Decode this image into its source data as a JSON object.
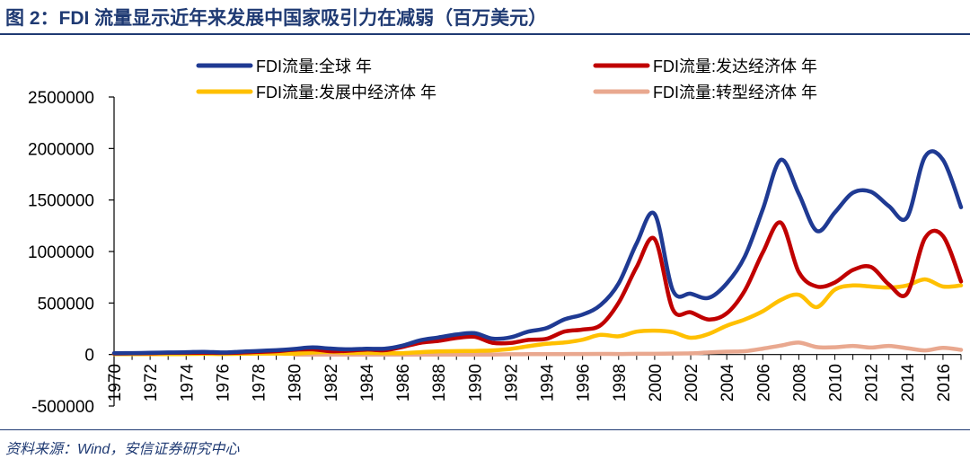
{
  "title": "图 2：FDI 流量显示近年来发展中国家吸引力在减弱（百万美元）",
  "source": "资料来源：Wind，安信证券研究中心",
  "chart_data": {
    "type": "line",
    "title": "图 2：FDI 流量显示近年来发展中国家吸引力在减弱（百万美元）",
    "xlabel": "",
    "ylabel": "",
    "xlim": [
      1970,
      2017
    ],
    "ylim": [
      -500000,
      2500000
    ],
    "yticks": [
      -500000,
      0,
      500000,
      1000000,
      1500000,
      2000000,
      2500000
    ],
    "ytick_labels": [
      "-500000",
      "0",
      "500000",
      "1000000",
      "1500000",
      "2000000",
      "2500000"
    ],
    "xtick_labels": [
      "1970",
      "1972",
      "1974",
      "1976",
      "1978",
      "1980",
      "1982",
      "1984",
      "1986",
      "1988",
      "1990",
      "1992",
      "1994",
      "1996",
      "1998",
      "2000",
      "2002",
      "2004",
      "2006",
      "2008",
      "2010",
      "2012",
      "2014",
      "2016"
    ],
    "grid": false,
    "legend_placement": "top",
    "x": [
      1970,
      1971,
      1972,
      1973,
      1974,
      1975,
      1976,
      1977,
      1978,
      1979,
      1980,
      1981,
      1982,
      1983,
      1984,
      1985,
      1986,
      1987,
      1988,
      1989,
      1990,
      1991,
      1992,
      1993,
      1994,
      1995,
      1996,
      1997,
      1998,
      1999,
      2000,
      2001,
      2002,
      2003,
      2004,
      2005,
      2006,
      2007,
      2008,
      2009,
      2010,
      2011,
      2012,
      2013,
      2014,
      2015,
      2016,
      2017
    ],
    "series": [
      {
        "name": "FDI流量:全球 年",
        "color": "#1f3a93",
        "values": [
          13000,
          14000,
          16000,
          20000,
          22000,
          26000,
          20000,
          27000,
          35000,
          42000,
          54000,
          69000,
          58000,
          50000,
          56000,
          56000,
          86000,
          138000,
          165000,
          194000,
          207000,
          154000,
          166000,
          223000,
          256000,
          342000,
          388000,
          480000,
          690000,
          1080000,
          1363000,
          625000,
          590000,
          550000,
          690000,
          950000,
          1410000,
          1890000,
          1560000,
          1200000,
          1380000,
          1570000,
          1580000,
          1440000,
          1330000,
          1920000,
          1890000,
          1430000
        ]
      },
      {
        "name": "FDI流量:发达经济体 年",
        "color": "#c00000",
        "values": [
          9000,
          11000,
          12000,
          16000,
          17000,
          18000,
          15000,
          18000,
          25000,
          32000,
          46000,
          50000,
          32000,
          36000,
          48000,
          42000,
          73000,
          114000,
          132000,
          160000,
          172000,
          114000,
          112000,
          142000,
          152000,
          223000,
          242000,
          284000,
          503000,
          850000,
          1120000,
          440000,
          410000,
          340000,
          400000,
          620000,
          990000,
          1280000,
          800000,
          660000,
          700000,
          820000,
          850000,
          680000,
          590000,
          1130000,
          1150000,
          710000
        ]
      },
      {
        "name": "FDI流量:发展中经济体 年",
        "color": "#ffc000",
        "values": [
          4000,
          3000,
          4000,
          4000,
          5000,
          7000,
          5000,
          7000,
          9000,
          9000,
          8000,
          19000,
          24000,
          16000,
          17000,
          14000,
          13000,
          22000,
          31000,
          33000,
          35000,
          40000,
          54000,
          81000,
          104000,
          117000,
          144000,
          191000,
          177000,
          222000,
          232000,
          217000,
          163000,
          200000,
          280000,
          340000,
          420000,
          530000,
          580000,
          460000,
          630000,
          670000,
          660000,
          650000,
          670000,
          730000,
          660000,
          670000
        ]
      },
      {
        "name": "FDI流量:转型经济体 年",
        "color": "#e9a88f",
        "values": [
          null,
          null,
          null,
          null,
          null,
          null,
          null,
          null,
          null,
          null,
          0,
          0,
          0,
          0,
          0,
          0,
          0,
          0,
          0,
          0,
          0,
          0,
          2000,
          3000,
          4000,
          4000,
          5000,
          6000,
          5000,
          7000,
          7000,
          9000,
          11000,
          20000,
          28000,
          32000,
          57000,
          87000,
          116000,
          72000,
          70000,
          83000,
          68000,
          83000,
          62000,
          40000,
          65000,
          45000
        ]
      }
    ]
  }
}
